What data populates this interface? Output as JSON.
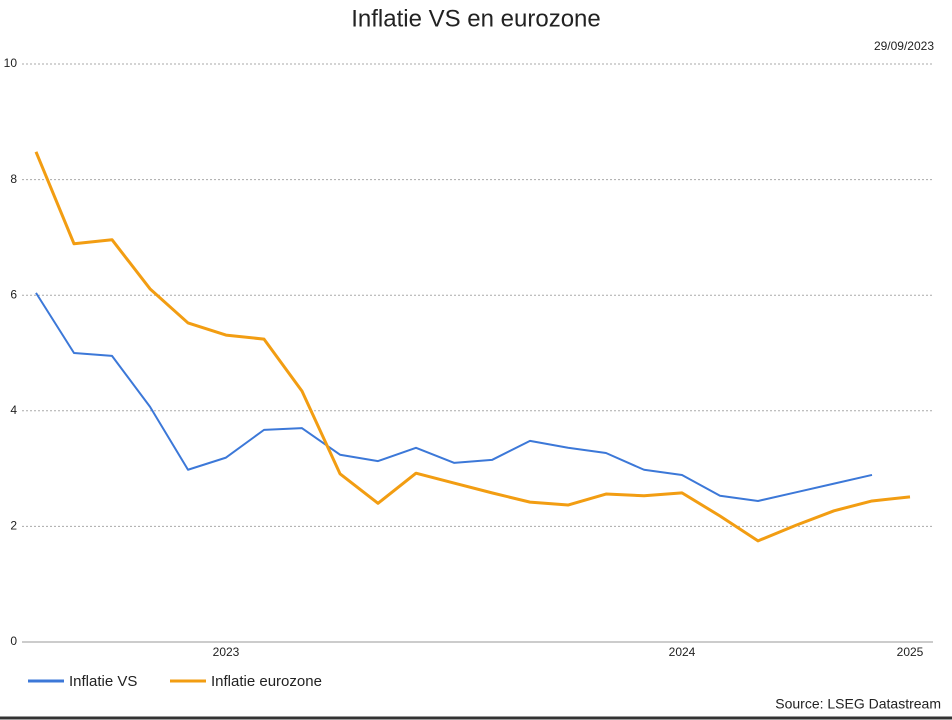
{
  "chart_data": {
    "type": "line",
    "title": "Inflatie VS en eurozone",
    "subtitle": "29/09/2023",
    "source": "Source: LSEG Datastream",
    "categories": [
      null,
      null,
      null,
      null,
      null,
      "2023",
      null,
      null,
      null,
      null,
      null,
      null,
      null,
      null,
      null,
      null,
      null,
      "2024",
      null,
      null,
      null,
      null,
      null,
      "2025"
    ],
    "series": [
      {
        "name": "Inflatie VS",
        "color": "#3c78d8",
        "values": [
          6.04,
          5.0,
          4.95,
          4.07,
          2.98,
          3.19,
          3.67,
          3.7,
          3.24,
          3.13,
          3.36,
          3.1,
          3.15,
          3.48,
          3.36,
          3.27,
          2.98,
          2.89,
          2.53,
          2.44,
          2.59,
          2.74,
          2.89,
          null
        ]
      },
      {
        "name": "Inflatie eurozone",
        "color": "#f29d12",
        "values": [
          8.48,
          6.89,
          6.96,
          6.11,
          5.52,
          5.31,
          5.24,
          4.34,
          2.91,
          2.4,
          2.92,
          2.75,
          2.58,
          2.42,
          2.37,
          2.56,
          2.53,
          2.58,
          2.18,
          1.75,
          2.02,
          2.27,
          2.44,
          2.51
        ]
      }
    ],
    "ylim": [
      0,
      10
    ],
    "yticks": [
      0,
      2,
      4,
      6,
      8,
      10
    ],
    "grid": true
  }
}
